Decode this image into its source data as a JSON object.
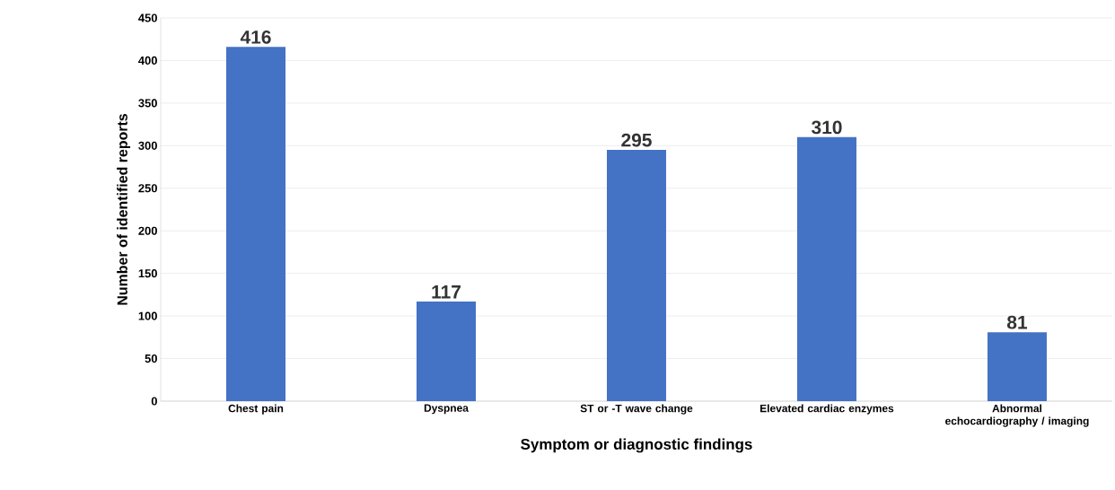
{
  "chart_data": {
    "type": "bar",
    "xlabel": "Symptom or diagnostic findings",
    "ylabel": "Number of identified reports",
    "categories": [
      "Chest pain",
      "Dyspnea",
      "ST or -T wave change",
      "Elevated cardiac enzymes",
      "Abnormal echocardiography / imaging"
    ],
    "values": [
      416,
      117,
      295,
      310,
      81
    ],
    "color": "#4472c4",
    "ylim": [
      0,
      450
    ],
    "yticks": [
      0,
      50,
      100,
      150,
      200,
      250,
      300,
      350,
      400,
      450
    ],
    "grid": "y",
    "data_labels": true
  }
}
